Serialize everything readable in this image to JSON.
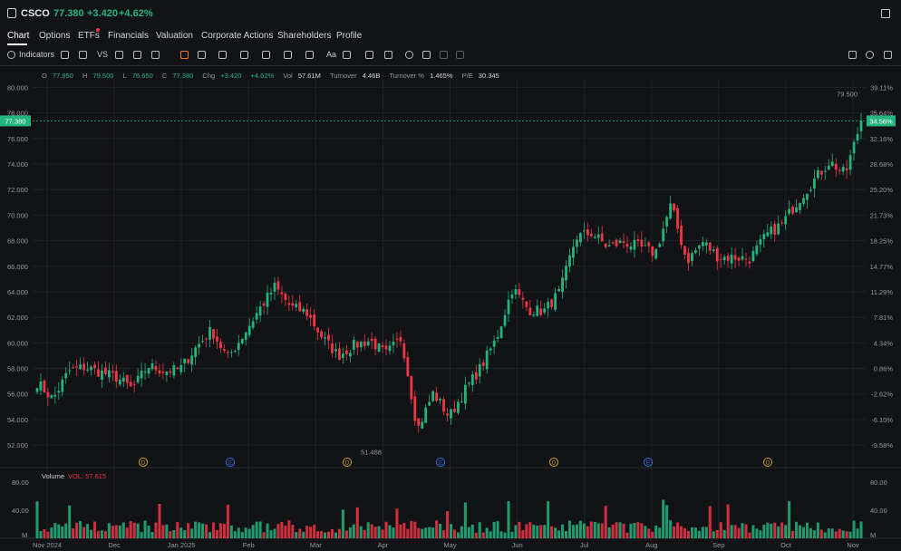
{
  "header": {
    "symbol": "CSCO",
    "price": "77.380",
    "change": "+3.420",
    "change_pct": "+4.62%"
  },
  "tabs": [
    {
      "label": "Chart"
    },
    {
      "label": "Options"
    },
    {
      "label": "ETFs"
    },
    {
      "label": "Financials"
    },
    {
      "label": "Valuation"
    },
    {
      "label": "Corporate Actions"
    },
    {
      "label": "Shareholders"
    },
    {
      "label": "Profile"
    }
  ],
  "toolbar": {
    "indicators_label": "Indicators",
    "vs_label": "VS",
    "text_tool_label": "Aa"
  },
  "ohlc": {
    "o_label": "O",
    "o": "77.950",
    "h_label": "H",
    "h": "79.500",
    "l_label": "L",
    "l": "76.650",
    "c_label": "C",
    "c": "77.380",
    "chg_label": "Chg",
    "chg": "+3.420",
    "chg_pct": "+4.62%",
    "vol_label": "Vol",
    "vol": "57.61M",
    "turnover_label": "Turnover",
    "turnover": "4.46B",
    "turnover_pct_label": "Turnover %",
    "turnover_pct": "1.465%",
    "pe_label": "P/E",
    "pe": "30.345"
  },
  "volume_panel": {
    "title": "Volume",
    "value_label": "VOL: 57.615",
    "unit": "M"
  },
  "colors": {
    "up": "#24b47e",
    "down": "#f23645",
    "bg": "#121317",
    "grid": "#1f2128"
  },
  "chart_data": {
    "type": "candlestick",
    "y_ticks": [
      "80.000",
      "78.000",
      "76.000",
      "74.000",
      "72.000",
      "70.000",
      "68.000",
      "66.000",
      "64.000",
      "62.000",
      "60.000",
      "58.000",
      "56.000",
      "54.000",
      "52.000"
    ],
    "pct_ticks": [
      "39.11%",
      "35.64%",
      "32.16%",
      "28.68%",
      "25.20%",
      "21.73%",
      "18.25%",
      "14.77%",
      "11.29%",
      "7.81%",
      "4.34%",
      "0.86%",
      "-2.62%",
      "-6.10%",
      "-9.58%"
    ],
    "ylim": [
      50.8,
      80.6
    ],
    "x_ticks": [
      "Nov 2024",
      "Dec",
      "Jan 2025",
      "Feb",
      "Mar",
      "Apr",
      "May",
      "Jun",
      "Jul",
      "Aug",
      "Sep",
      "Oct",
      "Nov"
    ],
    "current_price_label": "77.380",
    "current_pct_label": "34.56%",
    "high_annotation": "79.500",
    "low_annotation": "51.488",
    "events": [
      "D",
      "E",
      "D",
      "E",
      "D",
      "E",
      "D"
    ],
    "volume_ticks": [
      "80.00",
      "40.00"
    ],
    "volume_unit": "M",
    "volume_ylim": [
      0,
      80
    ],
    "anchors": [
      56.9,
      55.6,
      57.8,
      58.1,
      57.7,
      57.3,
      56.4,
      58.2,
      57.8,
      57.9,
      59.6,
      61.0,
      58.8,
      60.6,
      62.6,
      64.4,
      62.8,
      62.4,
      60.4,
      59.0,
      59.8,
      60.2,
      59.1,
      60.4,
      53.2,
      56.1,
      54.2,
      56.3,
      58.1,
      60.4,
      64.3,
      62.6,
      62.5,
      64.0,
      68.3,
      68.6,
      67.5,
      67.9,
      67.5,
      67.0,
      70.8,
      66.4,
      67.9,
      66.7,
      66.7,
      66.6,
      68.4,
      69.3,
      71.1,
      72.7,
      74.2,
      73.2,
      77.4
    ]
  }
}
